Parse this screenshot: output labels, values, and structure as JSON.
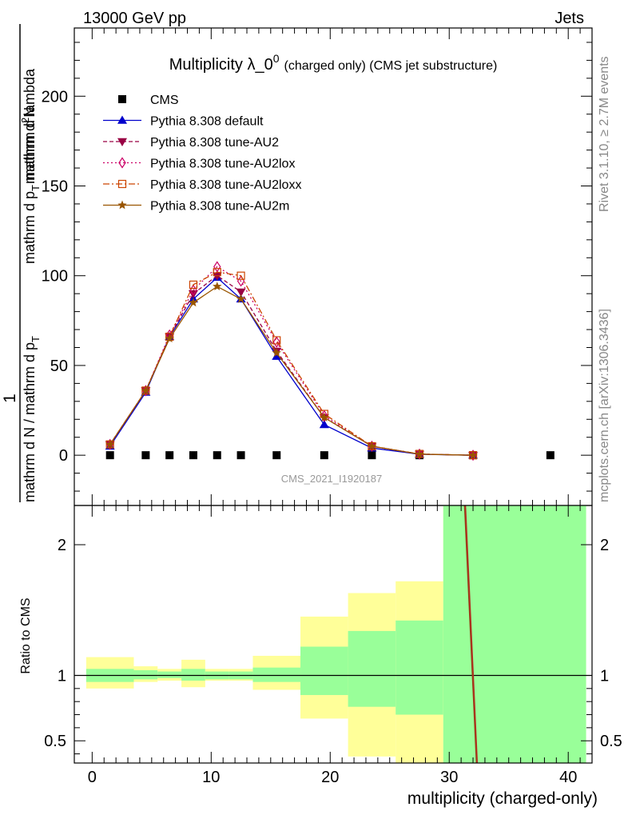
{
  "header": {
    "left": "13000 GeV pp",
    "right": "Jets"
  },
  "side_labels": {
    "rivet": "Rivet 3.1.10, ≥ 2.7M events",
    "mcplots": "mcplots.cern.ch [arXiv:1306.3436]"
  },
  "chart_data": [
    {
      "type": "line",
      "panel": "main",
      "title": "Multiplicity λ_0",
      "title_sup": "0",
      "title_suffix": "(charged only) (CMS jet substructure)",
      "analysis_tag": "CMS_2021_I1920187",
      "ylabel_num": "mathrm d",
      "ylabel_sup": "2",
      "ylabel_num2": "N",
      "ylabel_den": "mathrm d p",
      "ylabel_den_sub": "T",
      "ylabel_den2": " mathrm d lambda",
      "ylabel_pre_num": "1",
      "ylabel_pre_den": "mathrm d N / mathrm d p",
      "ylabel_pre_den_sub": "T",
      "ylim": [
        -28,
        238
      ],
      "xlim": [
        -1.5,
        42
      ],
      "yticks": [
        0,
        50,
        100,
        150,
        200
      ],
      "legend_position": "top-left",
      "series": [
        {
          "name": "CMS",
          "color": "#000000",
          "marker": "square",
          "x": [
            1.5,
            4.5,
            6.5,
            8.5,
            10.5,
            12.5,
            15.5,
            19.5,
            23.5,
            27.5,
            32.0,
            38.5
          ],
          "y": [
            0,
            0,
            0,
            0,
            0,
            0,
            0,
            0,
            0,
            0,
            0,
            0
          ]
        },
        {
          "name": "Pythia 8.308 default",
          "color": "#0000cc",
          "dash": "",
          "marker": "triangle-up",
          "x": [
            1.5,
            4.5,
            6.5,
            8.5,
            10.5,
            12.5,
            15.5,
            19.5,
            23.5,
            27.5,
            32.0
          ],
          "y": [
            5,
            35,
            66,
            87,
            99,
            87,
            55,
            17,
            4,
            0.5,
            0
          ]
        },
        {
          "name": "Pythia 8.308 tune-AU2",
          "color": "#990044",
          "dash": "5,3",
          "marker": "triangle-down",
          "x": [
            1.5,
            4.5,
            6.5,
            8.5,
            10.5,
            12.5,
            15.5,
            19.5,
            23.5,
            27.5,
            32.0
          ],
          "y": [
            6,
            36,
            66,
            90,
            100,
            91,
            58,
            21,
            5,
            0.6,
            0
          ]
        },
        {
          "name": "Pythia 8.308 tune-AU2lox",
          "color": "#cc0066",
          "dash": "2,3",
          "marker": "diamond-open",
          "x": [
            1.5,
            4.5,
            6.5,
            8.5,
            10.5,
            12.5,
            15.5,
            19.5,
            23.5,
            27.5,
            32.0
          ],
          "y": [
            6,
            36,
            67,
            92,
            105,
            97,
            63,
            22,
            5,
            0.6,
            0
          ]
        },
        {
          "name": "Pythia 8.308 tune-AU2loxx",
          "color": "#cc4400",
          "dash": "8,3,2,3",
          "marker": "square-open",
          "x": [
            1.5,
            4.5,
            6.5,
            8.5,
            10.5,
            12.5,
            15.5,
            19.5,
            23.5,
            27.5,
            32.0
          ],
          "y": [
            6,
            36,
            66,
            95,
            102,
            100,
            64,
            23,
            5,
            0.7,
            0
          ]
        },
        {
          "name": "Pythia 8.308 tune-AU2m",
          "color": "#995500",
          "dash": "",
          "marker": "star",
          "x": [
            1.5,
            4.5,
            6.5,
            8.5,
            10.5,
            12.5,
            15.5,
            19.5,
            23.5,
            27.5,
            32.0
          ],
          "y": [
            6,
            36,
            65,
            85,
            94,
            87,
            57,
            21,
            5,
            0.6,
            0
          ]
        }
      ]
    },
    {
      "type": "area",
      "panel": "ratio",
      "ylabel": "Ratio to CMS",
      "xlabel": "multiplicity (charged-only)",
      "xlim": [
        -1.5,
        42
      ],
      "ylim": [
        0.33,
        2.3
      ],
      "yticks": [
        0.5,
        1,
        2
      ],
      "ytick_labels": [
        "0.5",
        "1",
        "2"
      ],
      "xticks": [
        0,
        10,
        20,
        30,
        40
      ],
      "bands": [
        {
          "x0": -0.5,
          "x1": 3.5,
          "yellow": [
            0.9,
            1.14
          ],
          "green": [
            0.95,
            1.05
          ]
        },
        {
          "x0": 3.5,
          "x1": 5.5,
          "yellow": [
            0.95,
            1.07
          ],
          "green": [
            0.97,
            1.04
          ]
        },
        {
          "x0": 5.5,
          "x1": 7.5,
          "yellow": [
            0.96,
            1.05
          ],
          "green": [
            0.98,
            1.03
          ]
        },
        {
          "x0": 7.5,
          "x1": 9.5,
          "yellow": [
            0.91,
            1.12
          ],
          "green": [
            0.96,
            1.05
          ]
        },
        {
          "x0": 9.5,
          "x1": 11.5,
          "yellow": [
            0.96,
            1.05
          ],
          "green": [
            0.97,
            1.03
          ]
        },
        {
          "x0": 11.5,
          "x1": 13.5,
          "yellow": [
            0.96,
            1.05
          ],
          "green": [
            0.97,
            1.03
          ]
        },
        {
          "x0": 13.5,
          "x1": 17.5,
          "yellow": [
            0.89,
            1.15
          ],
          "green": [
            0.95,
            1.06
          ]
        },
        {
          "x0": 17.5,
          "x1": 21.5,
          "yellow": [
            0.67,
            1.45
          ],
          "green": [
            0.85,
            1.22
          ]
        },
        {
          "x0": 21.5,
          "x1": 25.5,
          "yellow": [
            0.38,
            1.63
          ],
          "green": [
            0.76,
            1.34
          ]
        },
        {
          "x0": 25.5,
          "x1": 29.5,
          "yellow": [
            0.33,
            1.72
          ],
          "green": [
            0.7,
            1.42
          ]
        },
        {
          "x0": 29.5,
          "x1": 41.5,
          "yellow": [
            0.33,
            2.3
          ],
          "green": [
            0.33,
            2.3
          ]
        }
      ],
      "series": [
        {
          "name": "Pythia 8.308 tune-AU2m",
          "color": "#8b4513",
          "x": [
            31.3,
            32.3
          ],
          "y": [
            2.3,
            0.33
          ]
        },
        {
          "name": "Pythia 8.308 tune-AU2loxx",
          "color": "#b03020",
          "x": [
            31.35,
            32.35
          ],
          "y": [
            2.3,
            0.33
          ]
        }
      ]
    }
  ]
}
